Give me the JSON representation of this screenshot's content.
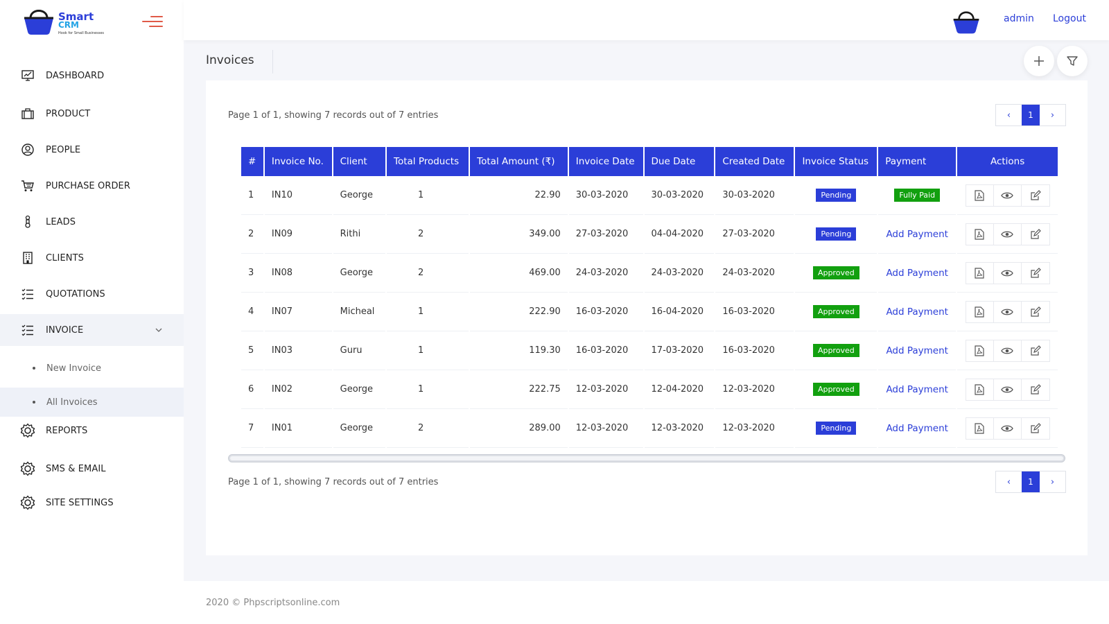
{
  "brand": {
    "line1": "Smart",
    "line2": "CRM",
    "tagline": "Hook for Small Businesses",
    "accent": "#2b3ed8"
  },
  "sidebar": {
    "items": [
      {
        "label": "DASHBOARD",
        "icon": "dashboard-icon"
      },
      {
        "label": "PRODUCT",
        "icon": "briefcase-icon"
      },
      {
        "label": "PEOPLE",
        "icon": "user-circle-icon"
      },
      {
        "label": "PURCHASE ORDER",
        "icon": "cart-icon"
      },
      {
        "label": "LEADS",
        "icon": "lead-icon"
      },
      {
        "label": "CLIENTS",
        "icon": "building-icon"
      },
      {
        "label": "QUOTATIONS",
        "icon": "checklist-icon"
      },
      {
        "label": "INVOICE",
        "icon": "checklist-icon"
      },
      {
        "label": "REPORTS",
        "icon": "gear-icon"
      },
      {
        "label": "SMS & EMAIL",
        "icon": "gear-icon"
      },
      {
        "label": "SITE SETTINGS",
        "icon": "gear-icon"
      }
    ],
    "invoice_sub": [
      {
        "label": "New Invoice"
      },
      {
        "label": "All Invoices"
      }
    ]
  },
  "header": {
    "user": "admin",
    "logout": "Logout"
  },
  "page": {
    "title": "Invoices"
  },
  "pagination": {
    "info_top": "Page 1 of 1, showing 7 records out of 7 entries",
    "info_bottom": "Page 1 of 1, showing 7 records out of 7 entries",
    "current": "1",
    "prev": "‹",
    "next": "›"
  },
  "table": {
    "headers": [
      "#",
      "Invoice No.",
      "Client",
      "Total Products",
      "Total Amount (₹)",
      "Invoice Date",
      "Due Date",
      "Created Date",
      "Invoice Status",
      "Payment",
      "Actions"
    ],
    "rows": [
      {
        "idx": "1",
        "no": "IN10",
        "client": "George",
        "products": "1",
        "amount": "22.90",
        "inv_date": "30-03-2020",
        "due_date": "30-03-2020",
        "created": "30-03-2020",
        "status": "Pending",
        "payment": "Fully Paid"
      },
      {
        "idx": "2",
        "no": "IN09",
        "client": "Rithi",
        "products": "2",
        "amount": "349.00",
        "inv_date": "27-03-2020",
        "due_date": "04-04-2020",
        "created": "27-03-2020",
        "status": "Pending",
        "payment": "Add Payment"
      },
      {
        "idx": "3",
        "no": "IN08",
        "client": "George",
        "products": "2",
        "amount": "469.00",
        "inv_date": "24-03-2020",
        "due_date": "24-03-2020",
        "created": "24-03-2020",
        "status": "Approved",
        "payment": "Add Payment"
      },
      {
        "idx": "4",
        "no": "IN07",
        "client": "Micheal",
        "products": "1",
        "amount": "222.90",
        "inv_date": "16-03-2020",
        "due_date": "16-04-2020",
        "created": "16-03-2020",
        "status": "Approved",
        "payment": "Add Payment"
      },
      {
        "idx": "5",
        "no": "IN03",
        "client": "Guru",
        "products": "1",
        "amount": "119.30",
        "inv_date": "16-03-2020",
        "due_date": "17-03-2020",
        "created": "16-03-2020",
        "status": "Approved",
        "payment": "Add Payment"
      },
      {
        "idx": "6",
        "no": "IN02",
        "client": "George",
        "products": "1",
        "amount": "222.75",
        "inv_date": "12-03-2020",
        "due_date": "12-04-2020",
        "created": "12-03-2020",
        "status": "Approved",
        "payment": "Add Payment"
      },
      {
        "idx": "7",
        "no": "IN01",
        "client": "George",
        "products": "2",
        "amount": "289.00",
        "inv_date": "12-03-2020",
        "due_date": "12-03-2020",
        "created": "12-03-2020",
        "status": "Pending",
        "payment": "Add Payment"
      }
    ]
  },
  "footer": {
    "text": "2020 © Phpscriptsonline.com"
  },
  "colors": {
    "primary": "#2b3ed8",
    "approved": "#12a00f",
    "hamburger": "#e05a47"
  }
}
